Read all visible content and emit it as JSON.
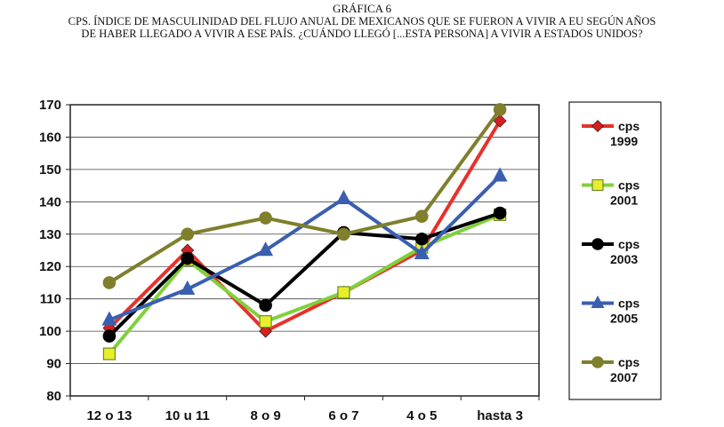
{
  "header": {
    "title_line1": "GRÁFICA 6",
    "title_line2": "CPS. ÍNDICE DE MASCULINIDAD DEL FLUJO ANUAL DE MEXICANOS QUE SE FUERON A VIVIR A EU SEGÚN AÑOS",
    "title_line3": "DE HABER LLEGADO A VIVIR A ESE PAÍS. ¿CUÁNDO LLEGÓ [...ESTA PERSONA] A VIVIR A ESTADOS UNIDOS?"
  },
  "chart_data": {
    "type": "line",
    "categories": [
      "12 o 13",
      "10 u 11",
      "8 o 9",
      "6 o 7",
      "4 o 5",
      "hasta 3"
    ],
    "ylim": [
      80,
      170
    ],
    "yticks": [
      80,
      90,
      100,
      110,
      120,
      130,
      140,
      150,
      160,
      170
    ],
    "grid": true,
    "legend_position": "right",
    "series": [
      {
        "name": "cps 1999",
        "label_line1": "cps",
        "label_line2": "1999",
        "color": "#e8302a",
        "marker": "diamond",
        "marker_color": "#d42020",
        "values": [
          101,
          125,
          100,
          112,
          125,
          165
        ]
      },
      {
        "name": "cps 2001",
        "label_line1": "cps",
        "label_line2": "2001",
        "color": "#7fd13b",
        "marker": "square",
        "marker_color": "#e8ef2a",
        "values": [
          93,
          122,
          103,
          112,
          126,
          136
        ]
      },
      {
        "name": "cps 2003",
        "label_line1": "cps",
        "label_line2": "2003",
        "color": "#000000",
        "marker": "circle",
        "marker_color": "#000000",
        "values": [
          98.5,
          122.5,
          108,
          130.5,
          128.5,
          136.5
        ]
      },
      {
        "name": "cps 2005",
        "label_line1": "cps",
        "label_line2": "2005",
        "color": "#3a5fb0",
        "marker": "triangle",
        "marker_color": "#3a5fb0",
        "values": [
          103.5,
          113,
          125,
          141,
          124,
          148
        ]
      },
      {
        "name": "cps 2007",
        "label_line1": "cps",
        "label_line2": "2007",
        "color": "#7f7f2c",
        "marker": "circle",
        "marker_color": "#7f7f2c",
        "values": [
          115,
          130,
          135,
          130,
          135.5,
          168.5
        ]
      }
    ]
  }
}
